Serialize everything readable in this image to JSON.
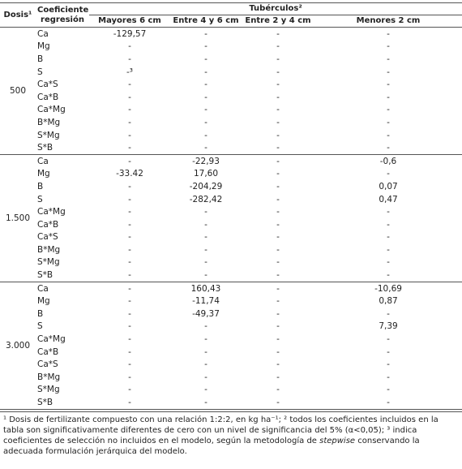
{
  "header": {
    "dosis": "Dosis¹",
    "coeficiente": "Coeficiente regresión",
    "tuberculos": "Tubérculos²",
    "columns": [
      "Mayores 6 cm",
      "Entre 4 y 6 cm",
      "Entre 2 y 4 cm",
      "Menores  2 cm"
    ]
  },
  "groups": [
    {
      "dosis": "500",
      "rows": [
        {
          "coef": "Ca",
          "values": [
            "-129,57",
            "-",
            "-",
            "-"
          ]
        },
        {
          "coef": "Mg",
          "values": [
            "-",
            "-",
            "-",
            "-"
          ]
        },
        {
          "coef": "B",
          "values": [
            "-",
            "-",
            "-",
            "-"
          ]
        },
        {
          "coef": "S",
          "values": [
            "-³",
            "-",
            "-",
            "-"
          ]
        },
        {
          "coef": "Ca*S",
          "values": [
            "-",
            "-",
            "-",
            "-"
          ]
        },
        {
          "coef": "Ca*B",
          "values": [
            "-",
            "-",
            "-",
            "-"
          ]
        },
        {
          "coef": "Ca*Mg",
          "values": [
            "-",
            "-",
            "-",
            "-"
          ]
        },
        {
          "coef": "B*Mg",
          "values": [
            "-",
            "-",
            "-",
            "-"
          ]
        },
        {
          "coef": "S*Mg",
          "values": [
            "-",
            "-",
            "-",
            "-"
          ]
        },
        {
          "coef": "S*B",
          "values": [
            "-",
            "-",
            "-",
            "-"
          ]
        }
      ]
    },
    {
      "dosis": "1.500",
      "rows": [
        {
          "coef": "Ca",
          "values": [
            "-",
            "-22,93",
            "-",
            "-0,6"
          ]
        },
        {
          "coef": "Mg",
          "values": [
            "-33.42",
            "17,60",
            "-",
            "-"
          ]
        },
        {
          "coef": "B",
          "values": [
            "-",
            "-204,29",
            "-",
            "0,07"
          ]
        },
        {
          "coef": "S",
          "values": [
            "-",
            "-282,42",
            "-",
            "0,47"
          ]
        },
        {
          "coef": "Ca*Mg",
          "values": [
            "-",
            "-",
            "-",
            "-"
          ]
        },
        {
          "coef": "Ca*B",
          "values": [
            "-",
            "-",
            "-",
            "-"
          ]
        },
        {
          "coef": "Ca*S",
          "values": [
            "-",
            "-",
            "-",
            "-"
          ]
        },
        {
          "coef": "B*Mg",
          "values": [
            "-",
            "-",
            "-",
            "-"
          ]
        },
        {
          "coef": "S*Mg",
          "values": [
            "-",
            "-",
            "-",
            "-"
          ]
        },
        {
          "coef": "S*B",
          "values": [
            "-",
            "-",
            "-",
            "-"
          ]
        }
      ]
    },
    {
      "dosis": "3.000",
      "rows": [
        {
          "coef": "Ca",
          "values": [
            "-",
            "160,43",
            "-",
            "-10,69"
          ]
        },
        {
          "coef": "Mg",
          "values": [
            "-",
            "-11,74",
            "-",
            "0,87"
          ]
        },
        {
          "coef": "B",
          "values": [
            "-",
            "-49,37",
            "-",
            "-"
          ]
        },
        {
          "coef": "S",
          "values": [
            "-",
            "-",
            "-",
            "7,39"
          ]
        },
        {
          "coef": "Ca*Mg",
          "values": [
            "-",
            "-",
            "-",
            "-"
          ]
        },
        {
          "coef": "Ca*B",
          "values": [
            "-",
            "-",
            "-",
            "-"
          ]
        },
        {
          "coef": "Ca*S",
          "values": [
            "-",
            "-",
            "-",
            "-"
          ]
        },
        {
          "coef": "B*Mg",
          "values": [
            "-",
            "-",
            "-",
            "-"
          ]
        },
        {
          "coef": "S*Mg",
          "values": [
            "-",
            "-",
            "-",
            "-"
          ]
        },
        {
          "coef": "S*B",
          "values": [
            "-",
            "-",
            "-",
            "-"
          ]
        }
      ]
    }
  ],
  "footnote": {
    "before": "¹ Dosis de fertilizante compuesto con una relación 1:2:2, en kg ha⁻¹; ² todos los coeficientes incluidos en la tabla son significativamente diferentes de cero con un nivel de significancia del 5% (α<0,05); ³ indica coeficientes de selección no incluidos en el modelo, según la metodología de ",
    "italic": "stepwise",
    "after": " conservando la adecuada formulación jerárquica del modelo."
  }
}
